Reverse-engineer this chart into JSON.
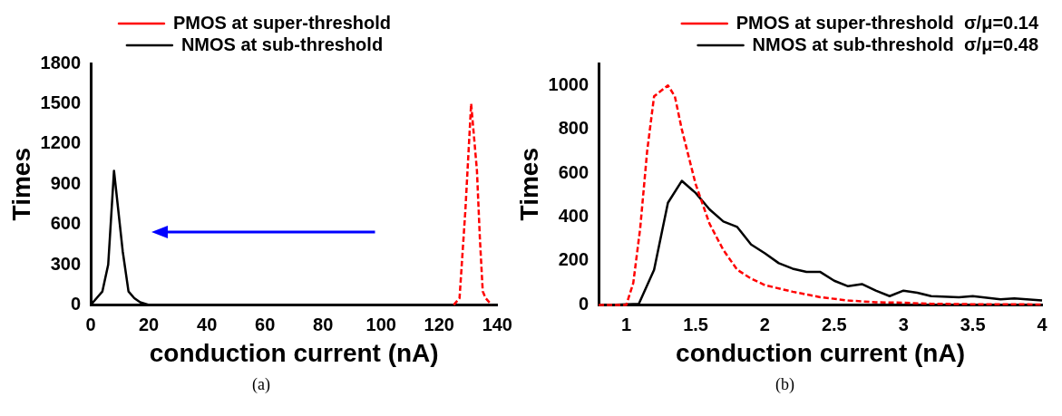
{
  "chart_data": [
    {
      "type": "line",
      "xlabel": "conduction current (nA)",
      "ylabel": "Times",
      "xlim": [
        0,
        140
      ],
      "xticks": [
        0,
        20,
        40,
        60,
        80,
        100,
        120,
        140
      ],
      "ylim": [
        0,
        1800
      ],
      "yticks": [
        0,
        300,
        600,
        900,
        1200,
        1500,
        1800
      ],
      "legend": "top",
      "grid": false,
      "marker": "none",
      "annotations": [
        "(a)"
      ],
      "series": [
        {
          "name": "PMOS at super-threshold",
          "color": "#ff0000",
          "line_style": "dashed",
          "x": [
            125,
            127,
            129,
            131,
            133,
            134,
            135,
            136,
            138
          ],
          "values": [
            0,
            50,
            700,
            1500,
            1000,
            500,
            100,
            50,
            0
          ]
        },
        {
          "name": "NMOS at sub-threshold",
          "color": "#000000",
          "line_style": "solid",
          "x": [
            0,
            2,
            4,
            6,
            8,
            11,
            13,
            15,
            17,
            20,
            30
          ],
          "values": [
            0,
            50,
            100,
            300,
            1000,
            400,
            100,
            50,
            20,
            0,
            0
          ]
        }
      ]
    },
    {
      "type": "line",
      "xlabel": "conduction current (nA)",
      "ylabel": "Times",
      "xlim": [
        0.8,
        4
      ],
      "xticks": [
        1,
        1.5,
        2,
        2.5,
        3,
        3.5,
        4
      ],
      "ylim": [
        0,
        1100
      ],
      "yticks": [
        0,
        200,
        400,
        600,
        800,
        1000
      ],
      "legend": "top right",
      "grid": false,
      "marker": "none",
      "annotations": [
        "(b)"
      ],
      "series": [
        {
          "name": "PMOS at super-threshold  σ/μ=0.14",
          "color": "#ff0000",
          "line_style": "dashed",
          "x": [
            0.8,
            1,
            1.05,
            1.1,
            1.15,
            1.2,
            1.3,
            1.35,
            1.4,
            1.5,
            1.6,
            1.7,
            1.8,
            1.9,
            2,
            2.2,
            2.4,
            2.6,
            2.8,
            3,
            3.2,
            3.5,
            4
          ],
          "values": [
            0,
            0,
            100,
            350,
            700,
            950,
            1000,
            950,
            800,
            550,
            370,
            250,
            160,
            120,
            90,
            60,
            35,
            20,
            12,
            10,
            5,
            3,
            2
          ]
        },
        {
          "name": "NMOS at sub-threshold  σ/μ=0.48",
          "color": "#000000",
          "line_style": "solid",
          "x": [
            0.88,
            1.09,
            1.2,
            1.3,
            1.4,
            1.5,
            1.6,
            1.7,
            1.8,
            1.9,
            2,
            2.1,
            2.2,
            2.3,
            2.4,
            2.5,
            2.6,
            2.7,
            2.8,
            2.9,
            3,
            3.1,
            3.2,
            3.4,
            3.5,
            3.7,
            3.8,
            4
          ],
          "values": [
            0,
            5,
            160,
            465,
            565,
            510,
            435,
            380,
            355,
            275,
            235,
            190,
            165,
            150,
            150,
            110,
            85,
            95,
            65,
            40,
            65,
            55,
            40,
            35,
            40,
            25,
            30,
            20
          ]
        }
      ]
    }
  ]
}
